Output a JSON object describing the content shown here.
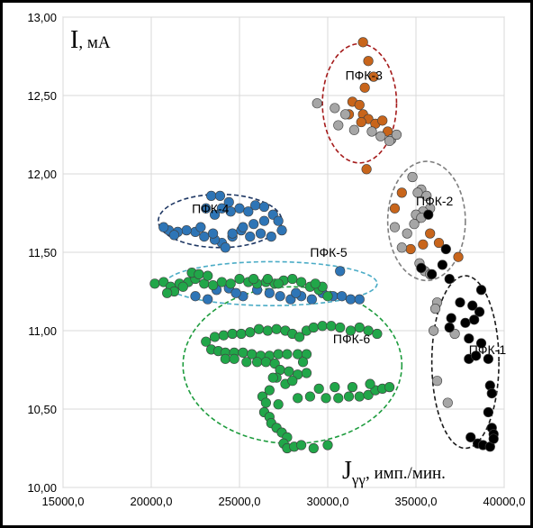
{
  "chart_data": {
    "type": "scatter",
    "ylabel_symbol": "I",
    "ylabel_unit": ", мА",
    "xlabel_symbol": "J",
    "xlabel_subscript": "γγ",
    "xlabel_unit": ", имп./мин.",
    "xlim": [
      15000,
      40000
    ],
    "ylim": [
      10.0,
      13.0
    ],
    "x_ticks": [
      "15000,0",
      "20000,0",
      "25000,0",
      "30000,0",
      "35000,0",
      "40000,0"
    ],
    "y_ticks": [
      "10,00",
      "10,50",
      "11,00",
      "11,50",
      "12,00",
      "12,50",
      "13,00"
    ],
    "grid": true,
    "colors": {
      "orange": "#c8651b",
      "gray": "#a6a6a6",
      "black": "#000000",
      "blue": "#2e75b6",
      "green": "#21a649"
    },
    "groups": [
      {
        "label": "ПФК-1",
        "center": [
          37800,
          10.8
        ],
        "radii": [
          1900,
          0.55
        ],
        "ellipse_color": "#1a1a1a",
        "label_pos": [
          38000,
          10.85
        ]
      },
      {
        "label": "ПФК-2",
        "center": [
          35600,
          11.7
        ],
        "radii": [
          2200,
          0.38
        ],
        "ellipse_color": "#7f7f7f",
        "label_pos": [
          35000,
          11.8
        ]
      },
      {
        "label": "ПФК-3",
        "center": [
          31800,
          12.45
        ],
        "radii": [
          2100,
          0.38
        ],
        "ellipse_color": "#a51b1b",
        "label_pos": [
          31000,
          12.6
        ]
      },
      {
        "label": "ПФК-4",
        "center": [
          23900,
          11.7
        ],
        "radii": [
          3500,
          0.17
        ],
        "ellipse_color": "#1f3864",
        "label_pos": [
          22300,
          11.75
        ]
      },
      {
        "label": "ПФК-5",
        "center": [
          26800,
          11.3
        ],
        "radii": [
          6000,
          0.14
        ],
        "ellipse_color": "#4bacc6",
        "label_pos": [
          29000,
          11.47
        ]
      },
      {
        "label": "ПФК-6",
        "center": [
          28000,
          10.78
        ],
        "radii": [
          6200,
          0.5
        ],
        "ellipse_color": "#1e9c3e",
        "label_pos": [
          30300,
          10.92
        ]
      }
    ],
    "series": [
      {
        "color_key": "orange",
        "points": [
          [
            32000,
            12.84
          ],
          [
            32300,
            12.72
          ],
          [
            32600,
            12.62
          ],
          [
            32100,
            12.55
          ],
          [
            31400,
            12.46
          ],
          [
            31800,
            12.44
          ],
          [
            31200,
            12.38
          ],
          [
            32000,
            12.38
          ],
          [
            32300,
            12.35
          ],
          [
            31900,
            12.33
          ],
          [
            32700,
            12.32
          ],
          [
            33100,
            12.34
          ],
          [
            33400,
            12.27
          ],
          [
            32200,
            12.03
          ],
          [
            34200,
            11.88
          ],
          [
            33800,
            11.78
          ],
          [
            35200,
            11.72
          ],
          [
            35800,
            11.62
          ],
          [
            36300,
            11.56
          ],
          [
            35400,
            11.55
          ],
          [
            34700,
            11.52
          ],
          [
            37400,
            11.47
          ]
        ]
      },
      {
        "color_key": "gray",
        "points": [
          [
            29400,
            12.45
          ],
          [
            30400,
            12.42
          ],
          [
            31000,
            12.38
          ],
          [
            30600,
            12.31
          ],
          [
            31500,
            12.28
          ],
          [
            32500,
            12.27
          ],
          [
            33000,
            12.24
          ],
          [
            33600,
            12.22
          ],
          [
            33900,
            12.25
          ],
          [
            33500,
            12.21
          ],
          [
            34800,
            11.98
          ],
          [
            35300,
            11.9
          ],
          [
            35100,
            11.88
          ],
          [
            35600,
            11.86
          ],
          [
            35800,
            11.78
          ],
          [
            35400,
            11.76
          ],
          [
            35000,
            11.74
          ],
          [
            35300,
            11.72
          ],
          [
            34900,
            11.68
          ],
          [
            34500,
            11.62
          ],
          [
            34200,
            11.53
          ],
          [
            35200,
            11.43
          ],
          [
            35500,
            11.38
          ],
          [
            35800,
            11.36
          ],
          [
            36200,
            11.18
          ],
          [
            36100,
            11.14
          ],
          [
            36000,
            11.0
          ],
          [
            37200,
            10.98
          ],
          [
            36200,
            10.68
          ],
          [
            36800,
            10.54
          ],
          [
            33800,
            11.66
          ]
        ]
      },
      {
        "color_key": "black",
        "points": [
          [
            35700,
            11.74
          ],
          [
            36700,
            11.52
          ],
          [
            36500,
            11.42
          ],
          [
            35300,
            11.4
          ],
          [
            36900,
            11.33
          ],
          [
            35900,
            11.36
          ],
          [
            38700,
            11.26
          ],
          [
            37500,
            11.18
          ],
          [
            38200,
            11.16
          ],
          [
            37800,
            11.05
          ],
          [
            38600,
            11.12
          ],
          [
            38300,
            11.07
          ],
          [
            37000,
            11.08
          ],
          [
            36900,
            11.02
          ],
          [
            38000,
            10.95
          ],
          [
            38700,
            10.92
          ],
          [
            38000,
            10.82
          ],
          [
            38400,
            10.84
          ],
          [
            39100,
            10.82
          ],
          [
            39200,
            10.65
          ],
          [
            39300,
            10.6
          ],
          [
            39100,
            10.48
          ],
          [
            39300,
            10.38
          ],
          [
            39400,
            10.34
          ],
          [
            38100,
            10.32
          ],
          [
            38500,
            10.28
          ],
          [
            38800,
            10.27
          ],
          [
            39200,
            10.26
          ],
          [
            39400,
            10.31
          ]
        ]
      },
      {
        "color_key": "blue",
        "points": [
          [
            23400,
            11.86
          ],
          [
            23900,
            11.86
          ],
          [
            24400,
            11.82
          ],
          [
            23100,
            11.78
          ],
          [
            23600,
            11.74
          ],
          [
            24000,
            11.78
          ],
          [
            24500,
            11.76
          ],
          [
            25000,
            11.78
          ],
          [
            25500,
            11.76
          ],
          [
            25900,
            11.8
          ],
          [
            26400,
            11.79
          ],
          [
            26900,
            11.74
          ],
          [
            27200,
            11.7
          ],
          [
            27400,
            11.64
          ],
          [
            26800,
            11.6
          ],
          [
            26200,
            11.62
          ],
          [
            25600,
            11.6
          ],
          [
            25100,
            11.64
          ],
          [
            24600,
            11.6
          ],
          [
            24000,
            11.56
          ],
          [
            23600,
            11.58
          ],
          [
            23000,
            11.6
          ],
          [
            22500,
            11.63
          ],
          [
            22000,
            11.64
          ],
          [
            21500,
            11.63
          ],
          [
            21000,
            11.64
          ],
          [
            20700,
            11.66
          ],
          [
            21300,
            11.61
          ],
          [
            24200,
            11.53
          ],
          [
            24600,
            11.62
          ],
          [
            25200,
            11.66
          ],
          [
            25800,
            11.68
          ],
          [
            26400,
            11.7
          ],
          [
            23500,
            11.62
          ],
          [
            22800,
            11.66
          ],
          [
            22500,
            11.22
          ],
          [
            23200,
            11.2
          ],
          [
            23700,
            11.26
          ],
          [
            24400,
            11.27
          ],
          [
            25200,
            11.22
          ],
          [
            26000,
            11.26
          ],
          [
            26700,
            11.24
          ],
          [
            27300,
            11.22
          ],
          [
            27900,
            11.2
          ],
          [
            28500,
            11.22
          ],
          [
            29100,
            11.2
          ],
          [
            29700,
            11.24
          ],
          [
            30300,
            11.22
          ],
          [
            30800,
            11.22
          ],
          [
            31300,
            11.2
          ],
          [
            31800,
            11.2
          ],
          [
            30700,
            11.38
          ],
          [
            28200,
            11.24
          ],
          [
            24800,
            11.24
          ]
        ]
      },
      {
        "color_key": "green",
        "points": [
          [
            20200,
            11.3
          ],
          [
            20700,
            11.31
          ],
          [
            21100,
            11.28
          ],
          [
            21600,
            11.3
          ],
          [
            22100,
            11.31
          ],
          [
            22500,
            11.33
          ],
          [
            23000,
            11.3
          ],
          [
            23500,
            11.29
          ],
          [
            24000,
            11.31
          ],
          [
            24500,
            11.3
          ],
          [
            25000,
            11.33
          ],
          [
            25500,
            11.31
          ],
          [
            26000,
            11.3
          ],
          [
            26500,
            11.31
          ],
          [
            27000,
            11.3
          ],
          [
            27500,
            11.32
          ],
          [
            28000,
            11.33
          ],
          [
            28500,
            11.31
          ],
          [
            29000,
            11.28
          ],
          [
            29500,
            11.26
          ],
          [
            30000,
            11.22
          ],
          [
            29700,
            11.28
          ],
          [
            29300,
            11.3
          ],
          [
            22300,
            11.37
          ],
          [
            22700,
            11.36
          ],
          [
            23200,
            11.35
          ],
          [
            21800,
            11.28
          ],
          [
            21300,
            11.25
          ],
          [
            20900,
            11.24
          ],
          [
            25800,
            11.33
          ],
          [
            26600,
            11.33
          ],
          [
            27200,
            11.3
          ],
          [
            23100,
            10.93
          ],
          [
            23600,
            10.96
          ],
          [
            24100,
            10.97
          ],
          [
            24600,
            10.98
          ],
          [
            25100,
            10.98
          ],
          [
            25600,
            10.99
          ],
          [
            26100,
            11.01
          ],
          [
            26600,
            11.0
          ],
          [
            27100,
            11.01
          ],
          [
            27600,
            11.0
          ],
          [
            28000,
            10.98
          ],
          [
            28400,
            10.96
          ],
          [
            28800,
            11.0
          ],
          [
            29200,
            11.02
          ],
          [
            29700,
            11.03
          ],
          [
            30200,
            11.03
          ],
          [
            30700,
            11.02
          ],
          [
            31300,
            11.0
          ],
          [
            31800,
            11.02
          ],
          [
            32300,
            11.0
          ],
          [
            32800,
            10.98
          ],
          [
            23400,
            10.88
          ],
          [
            23800,
            10.87
          ],
          [
            24200,
            10.86
          ],
          [
            24700,
            10.86
          ],
          [
            25200,
            10.86
          ],
          [
            25700,
            10.85
          ],
          [
            26200,
            10.84
          ],
          [
            26700,
            10.84
          ],
          [
            27200,
            10.85
          ],
          [
            27700,
            10.85
          ],
          [
            28300,
            10.85
          ],
          [
            28800,
            10.85
          ],
          [
            24200,
            10.82
          ],
          [
            24700,
            10.82
          ],
          [
            25400,
            10.8
          ],
          [
            26000,
            10.8
          ],
          [
            26500,
            10.8
          ],
          [
            27000,
            10.79
          ],
          [
            27300,
            10.75
          ],
          [
            27800,
            10.74
          ],
          [
            28300,
            10.72
          ],
          [
            28800,
            10.73
          ],
          [
            27100,
            10.7
          ],
          [
            27600,
            10.66
          ],
          [
            28000,
            10.68
          ],
          [
            26300,
            10.58
          ],
          [
            26500,
            10.54
          ],
          [
            27200,
            10.53
          ],
          [
            28300,
            10.57
          ],
          [
            29000,
            10.58
          ],
          [
            29900,
            10.57
          ],
          [
            30600,
            10.57
          ],
          [
            31200,
            10.58
          ],
          [
            31800,
            10.58
          ],
          [
            32300,
            10.59
          ],
          [
            32700,
            10.62
          ],
          [
            33100,
            10.63
          ],
          [
            33500,
            10.64
          ],
          [
            32400,
            10.66
          ],
          [
            31400,
            10.64
          ],
          [
            30400,
            10.64
          ],
          [
            29500,
            10.63
          ],
          [
            26400,
            10.48
          ],
          [
            26700,
            10.45
          ],
          [
            26800,
            10.41
          ],
          [
            27100,
            10.38
          ],
          [
            27400,
            10.35
          ],
          [
            27700,
            10.32
          ],
          [
            27500,
            10.28
          ],
          [
            27700,
            10.25
          ],
          [
            28100,
            10.26
          ],
          [
            28500,
            10.27
          ],
          [
            29200,
            10.25
          ],
          [
            30000,
            10.27
          ],
          [
            26900,
            10.7
          ],
          [
            26700,
            10.62
          ],
          [
            28600,
            10.8
          ]
        ]
      }
    ]
  }
}
